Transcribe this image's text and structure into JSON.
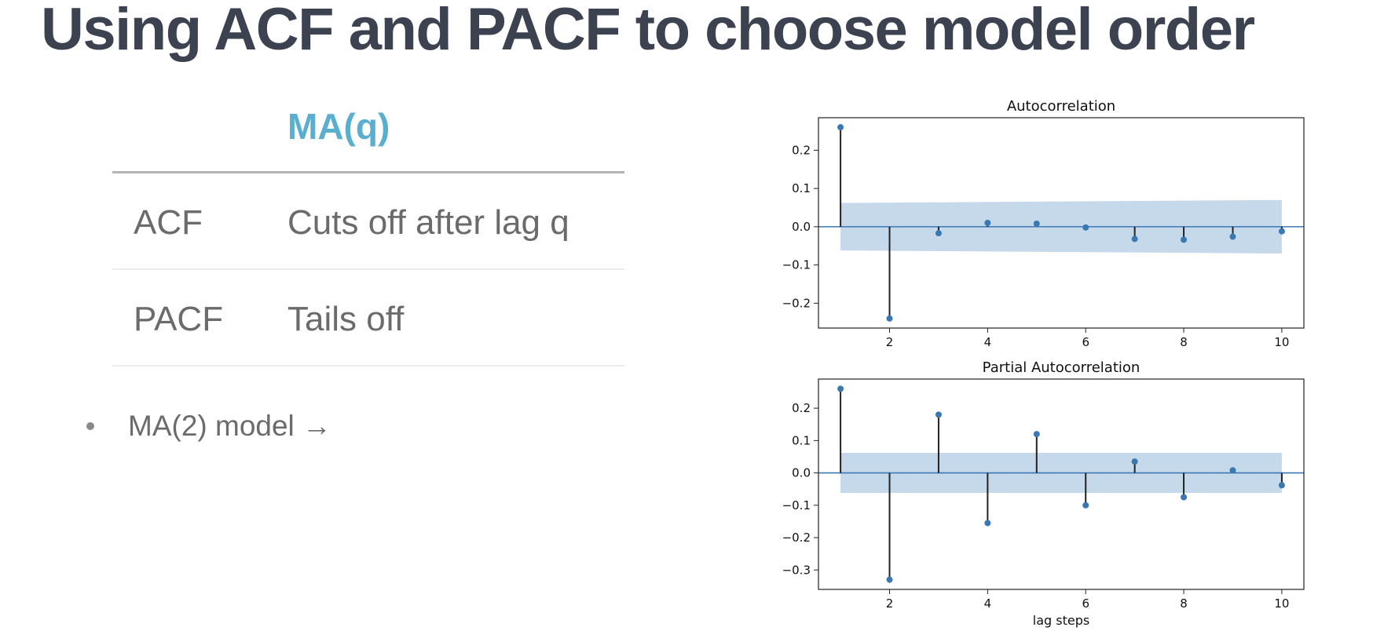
{
  "slide": {
    "title": "Using ACF and PACF to choose model order"
  },
  "table": {
    "header": "MA(q)",
    "rows": [
      {
        "label": "ACF",
        "value": "Cuts off after lag q"
      },
      {
        "label": "PACF",
        "value": "Tails off"
      }
    ]
  },
  "bullet": {
    "text": "MA(2) model →"
  },
  "chart_data": [
    {
      "type": "stem",
      "title": "Autocorrelation",
      "xlabel": "",
      "x": [
        1,
        2,
        3,
        4,
        5,
        6,
        7,
        8,
        9,
        10
      ],
      "values": [
        0.26,
        -0.24,
        -0.017,
        0.01,
        0.008,
        -0.002,
        -0.032,
        -0.034,
        -0.026,
        -0.012
      ],
      "confidence_band": {
        "x": [
          1,
          10
        ],
        "upper": [
          0.062,
          0.07
        ],
        "lower": [
          -0.062,
          -0.07
        ]
      },
      "xlim": [
        0.55,
        10.45
      ],
      "ylim": [
        -0.265,
        0.285
      ],
      "xticks": [
        2,
        4,
        6,
        8,
        10
      ],
      "yticks": [
        0.2,
        0.1,
        0.0,
        -0.1,
        -0.2
      ],
      "ytick_labels": [
        "0.2",
        "0.1",
        "0.0",
        "−0.1",
        "−0.2"
      ],
      "colors": {
        "marker": "#3a78b4",
        "band": "#c6d9ea",
        "stem": "#222222",
        "zero_line": "#3a78b4"
      }
    },
    {
      "type": "stem",
      "title": "Partial Autocorrelation",
      "xlabel": "lag steps",
      "x": [
        1,
        2,
        3,
        4,
        5,
        6,
        7,
        8,
        9,
        10
      ],
      "values": [
        0.26,
        -0.33,
        0.18,
        -0.155,
        0.12,
        -0.1,
        0.035,
        -0.075,
        0.008,
        -0.038
      ],
      "confidence_band": {
        "x": [
          1,
          10
        ],
        "upper": [
          0.062,
          0.062
        ],
        "lower": [
          -0.062,
          -0.062
        ]
      },
      "xlim": [
        0.55,
        10.45
      ],
      "ylim": [
        -0.36,
        0.29
      ],
      "xticks": [
        2,
        4,
        6,
        8,
        10
      ],
      "yticks": [
        0.2,
        0.1,
        0.0,
        -0.1,
        -0.2,
        -0.3
      ],
      "ytick_labels": [
        "0.2",
        "0.1",
        "0.0",
        "−0.1",
        "−0.2",
        "−0.3"
      ],
      "colors": {
        "marker": "#3a78b4",
        "band": "#c6d9ea",
        "stem": "#222222",
        "zero_line": "#3a78b4"
      }
    }
  ]
}
